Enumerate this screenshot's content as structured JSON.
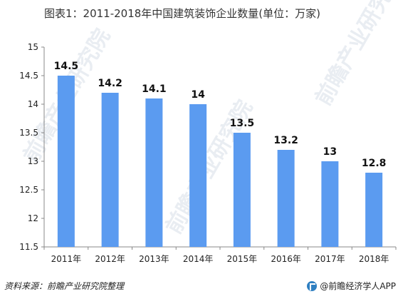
{
  "title": "图表1：2011-2018年中国建筑装饰企业数量(单位：万家)",
  "footer": {
    "source": "资料来源：前瞻产业研究院整理",
    "brand": "@前瞻经济学人APP"
  },
  "watermark": {
    "text": "前瞻产业研究院"
  },
  "colors": {
    "bar": "#5b9bf0",
    "axis": "#888888"
  },
  "chart_data": {
    "type": "bar",
    "title": "图表1：2011-2018年中国建筑装饰企业数量(单位：万家)",
    "categories": [
      "2011年",
      "2012年",
      "2013年",
      "2014年",
      "2015年",
      "2016年",
      "2017年",
      "2018年"
    ],
    "values": [
      14.5,
      14.2,
      14.1,
      14,
      13.5,
      13.2,
      13,
      12.8
    ],
    "data_labels": [
      "14.5",
      "14.2",
      "14.1",
      "14",
      "13.5",
      "13.2",
      "13",
      "12.8"
    ],
    "ylim": [
      11.5,
      15
    ],
    "yticks": [
      11.5,
      12,
      12.5,
      13,
      13.5,
      14,
      14.5,
      15
    ],
    "ytick_labels": [
      "11.5",
      "12",
      "12.5",
      "13",
      "13.5",
      "14",
      "14.5",
      "15"
    ],
    "xlabel": "",
    "ylabel": "",
    "grid": false,
    "legend": "none"
  }
}
